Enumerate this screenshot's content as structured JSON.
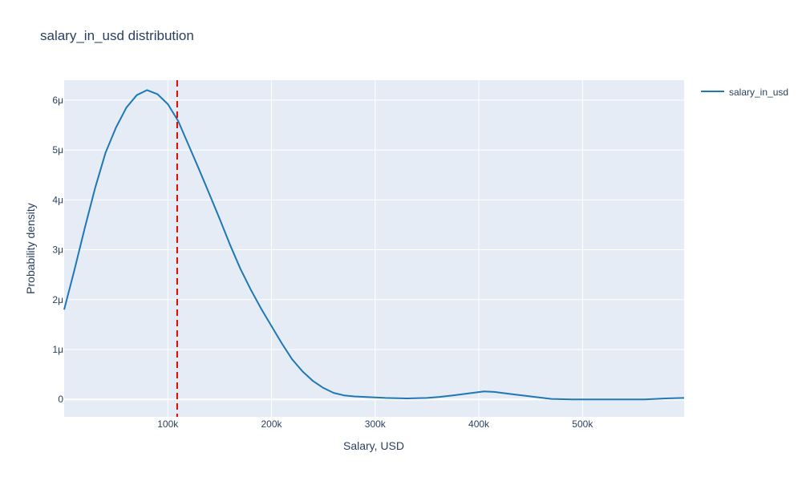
{
  "chart_data": {
    "type": "line",
    "title": "salary_in_usd distribution",
    "xlabel": "Salary, USD",
    "ylabel": "Probability density",
    "xlim": [
      0,
      598000
    ],
    "ylim": [
      -3.5e-07,
      6.4e-06
    ],
    "x_ticks": [
      {
        "value": 100000,
        "label": "100k"
      },
      {
        "value": 200000,
        "label": "200k"
      },
      {
        "value": 300000,
        "label": "300k"
      },
      {
        "value": 400000,
        "label": "400k"
      },
      {
        "value": 500000,
        "label": "500k"
      }
    ],
    "y_ticks": [
      {
        "value": 0,
        "label": "0"
      },
      {
        "value": 1e-06,
        "label": "1μ"
      },
      {
        "value": 2e-06,
        "label": "2μ"
      },
      {
        "value": 3e-06,
        "label": "3μ"
      },
      {
        "value": 4e-06,
        "label": "4μ"
      },
      {
        "value": 5e-06,
        "label": "5μ"
      },
      {
        "value": 6e-06,
        "label": "6μ"
      }
    ],
    "grid": true,
    "legend_position": "top-right",
    "series": [
      {
        "name": "salary_in_usd",
        "color": "#1f77b4",
        "x": [
          0,
          10000,
          20000,
          30000,
          40000,
          50000,
          60000,
          70000,
          80000,
          90000,
          100000,
          110000,
          120000,
          130000,
          140000,
          150000,
          160000,
          170000,
          180000,
          190000,
          200000,
          210000,
          220000,
          230000,
          240000,
          250000,
          260000,
          270000,
          280000,
          290000,
          300000,
          310000,
          330000,
          350000,
          362000,
          375000,
          390000,
          405000,
          415000,
          430000,
          450000,
          470000,
          490000,
          510000,
          530000,
          560000,
          580000,
          598000
        ],
        "y": [
          1.8e-06,
          2.6e-06,
          3.45e-06,
          4.25e-06,
          4.95e-06,
          5.45e-06,
          5.85e-06,
          6.1e-06,
          6.2e-06,
          6.12e-06,
          5.92e-06,
          5.58e-06,
          5.1e-06,
          4.62e-06,
          4.12e-06,
          3.62e-06,
          3.1e-06,
          2.62e-06,
          2.2e-06,
          1.82e-06,
          1.47e-06,
          1.12e-06,
          8e-07,
          5.6e-07,
          3.7e-07,
          2.3e-07,
          1.3e-07,
          8e-08,
          6e-08,
          5e-08,
          4e-08,
          3e-08,
          2e-08,
          3e-08,
          5e-08,
          8e-08,
          1.2e-07,
          1.6e-07,
          1.5e-07,
          1.1e-07,
          6e-08,
          1e-08,
          0.0,
          0.0,
          0.0,
          0.0,
          2e-08,
          3e-08
        ]
      }
    ],
    "vline": {
      "x": 109000,
      "color": "#e50000",
      "dash": "dashed"
    }
  }
}
